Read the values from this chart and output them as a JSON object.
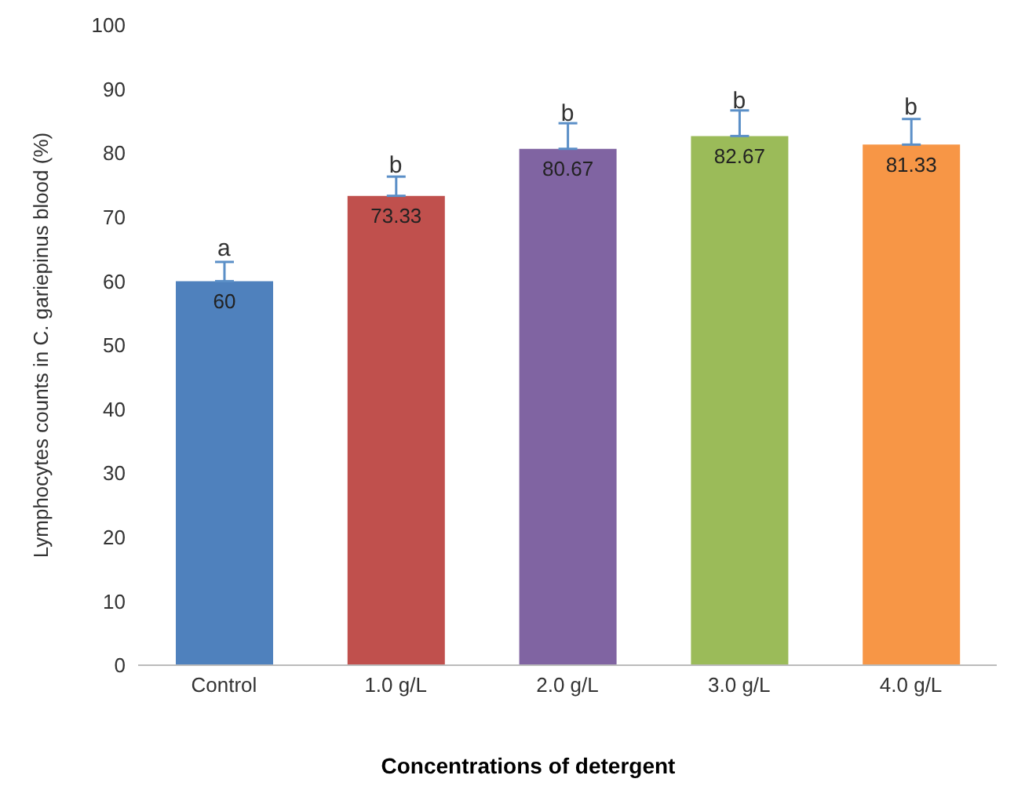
{
  "chart_data": {
    "type": "bar",
    "xlabel": "Concentrations of detergent",
    "ylabel": "Lymphocytes counts in C. gariepinus blood (%)",
    "categories": [
      "Control",
      "1.0 g/L",
      "2.0 g/L",
      "3.0 g/L",
      "4.0 g/L"
    ],
    "values": [
      60,
      73.33,
      80.67,
      82.67,
      81.33
    ],
    "colors": [
      "#4f81bd",
      "#c0504d",
      "#8064a2",
      "#9bbb59",
      "#f79646"
    ],
    "errors": [
      [
        60,
        63
      ],
      [
        73.33,
        76.33
      ],
      [
        80.67,
        84.67
      ],
      [
        82.67,
        86.67
      ],
      [
        81.33,
        85.33
      ]
    ],
    "data_labels": true,
    "ylim": [
      0,
      100
    ],
    "yticks": [
      0,
      10,
      20,
      30,
      40,
      50,
      60,
      70,
      80,
      90,
      100
    ],
    "annotations": [
      {
        "text": "a",
        "x": "Control",
        "y": 64
      },
      {
        "text": "b",
        "x": "1.0 g/L",
        "y": 77
      },
      {
        "text": "b",
        "x": "2.0 g/L",
        "y": 85
      },
      {
        "text": "b",
        "x": "3.0 g/L",
        "y": 87
      },
      {
        "text": "b",
        "x": "4.0 g/L",
        "y": 86
      }
    ]
  }
}
